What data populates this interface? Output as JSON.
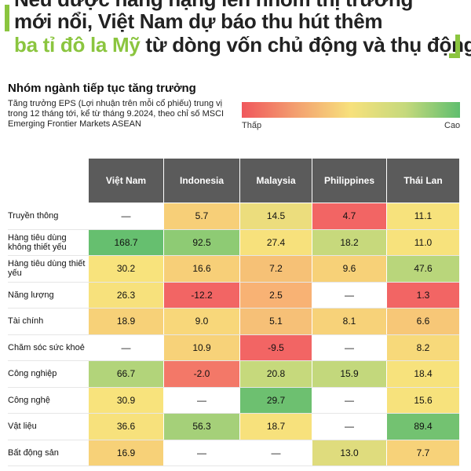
{
  "headline": {
    "line1": "Nếu được nâng hạng lên nhóm thị trường",
    "line2": "mới nổi, Việt Nam dự báo thu hút thêm",
    "line3_green": "ba tỉ đô la Mỹ",
    "line3_rest": " từ dòng vốn chủ động và thụ động"
  },
  "section_title": "Nhóm ngành tiếp tục tăng trưởng",
  "description": "Tăng trưởng EPS (Lợi nhuận trên mỗi cổ phiếu) trung vị trong 12 tháng tới, kể từ tháng 9.2024, theo chỉ số MSCI Emerging Frontier Markets ASEAN",
  "legend": {
    "low": "Thấp",
    "high": "Cao",
    "low_color": "#f0575c",
    "high_color": "#5fbe6e"
  },
  "chart_data": {
    "type": "heatmap",
    "columns": [
      "Việt Nam",
      "Indonesia",
      "Malaysia",
      "Philippines",
      "Thái Lan"
    ],
    "rows": [
      {
        "label": "Truyền thông",
        "values": [
          null,
          5.7,
          14.5,
          4.7,
          11.1
        ],
        "display": [
          "—",
          "5.7",
          "14.5",
          "4.7",
          "11.1"
        ]
      },
      {
        "label": "Hàng tiêu dùng không thiết yếu",
        "values": [
          168.7,
          92.5,
          27.4,
          18.2,
          11.0
        ],
        "display": [
          "168.7",
          "92.5",
          "27.4",
          "18.2",
          "11.0"
        ]
      },
      {
        "label": "Hàng tiêu dùng thiết yếu",
        "values": [
          30.2,
          16.6,
          7.2,
          9.6,
          47.6
        ],
        "display": [
          "30.2",
          "16.6",
          "7.2",
          "9.6",
          "47.6"
        ]
      },
      {
        "label": "Năng lượng",
        "values": [
          26.3,
          -12.2,
          2.5,
          null,
          1.3
        ],
        "display": [
          "26.3",
          "-12.2",
          "2.5",
          "—",
          "1.3"
        ]
      },
      {
        "label": "Tài chính",
        "values": [
          18.9,
          9.0,
          5.1,
          8.1,
          6.6
        ],
        "display": [
          "18.9",
          "9.0",
          "5.1",
          "8.1",
          "6.6"
        ]
      },
      {
        "label": "Chăm sóc sức khoẻ",
        "values": [
          null,
          10.9,
          -9.5,
          null,
          8.2
        ],
        "display": [
          "—",
          "10.9",
          "-9.5",
          "—",
          "8.2"
        ]
      },
      {
        "label": "Công nghiệp",
        "values": [
          66.7,
          -2.0,
          20.8,
          15.9,
          18.4
        ],
        "display": [
          "66.7",
          "-2.0",
          "20.8",
          "15.9",
          "18.4"
        ]
      },
      {
        "label": "Công nghệ",
        "values": [
          30.9,
          null,
          29.7,
          null,
          15.6
        ],
        "display": [
          "30.9",
          "—",
          "29.7",
          "—",
          "15.6"
        ]
      },
      {
        "label": "Vật liệu",
        "values": [
          36.6,
          56.3,
          18.7,
          null,
          89.4
        ],
        "display": [
          "36.6",
          "56.3",
          "18.7",
          "—",
          "89.4"
        ]
      },
      {
        "label": "Bất động sản",
        "values": [
          16.9,
          null,
          null,
          13.0,
          7.7
        ],
        "display": [
          "16.9",
          "—",
          "—",
          "13.0",
          "7.7"
        ]
      }
    ],
    "cell_colors": [
      [
        "#ffffff",
        "#f7cf78",
        "#ecdd7d",
        "#f26564",
        "#f7e27c"
      ],
      [
        "#66bf6f",
        "#8ecb74",
        "#f7e17c",
        "#c7d97c",
        "#f7e27c"
      ],
      [
        "#f8e37c",
        "#f7cf78",
        "#f6c176",
        "#f7d178",
        "#b9d67b"
      ],
      [
        "#f7e17c",
        "#f26564",
        "#f8b274",
        "#ffffff",
        "#f26564"
      ],
      [
        "#f7d178",
        "#f8d77a",
        "#f6c077",
        "#f7d279",
        "#f7c777"
      ],
      [
        "#ffffff",
        "#f7d279",
        "#f26564",
        "#ffffff",
        "#f7d97a"
      ],
      [
        "#b2d47a",
        "#f37868",
        "#c6d97c",
        "#c3d87c",
        "#f7e27c"
      ],
      [
        "#f8e37c",
        "#ffffff",
        "#6dc070",
        "#ffffff",
        "#f7e27c"
      ],
      [
        "#f7e17c",
        "#a5d079",
        "#f7e17c",
        "#ffffff",
        "#73c271"
      ],
      [
        "#f7d178",
        "#ffffff",
        "#ffffff",
        "#dfdc7d",
        "#f7d279"
      ]
    ]
  }
}
